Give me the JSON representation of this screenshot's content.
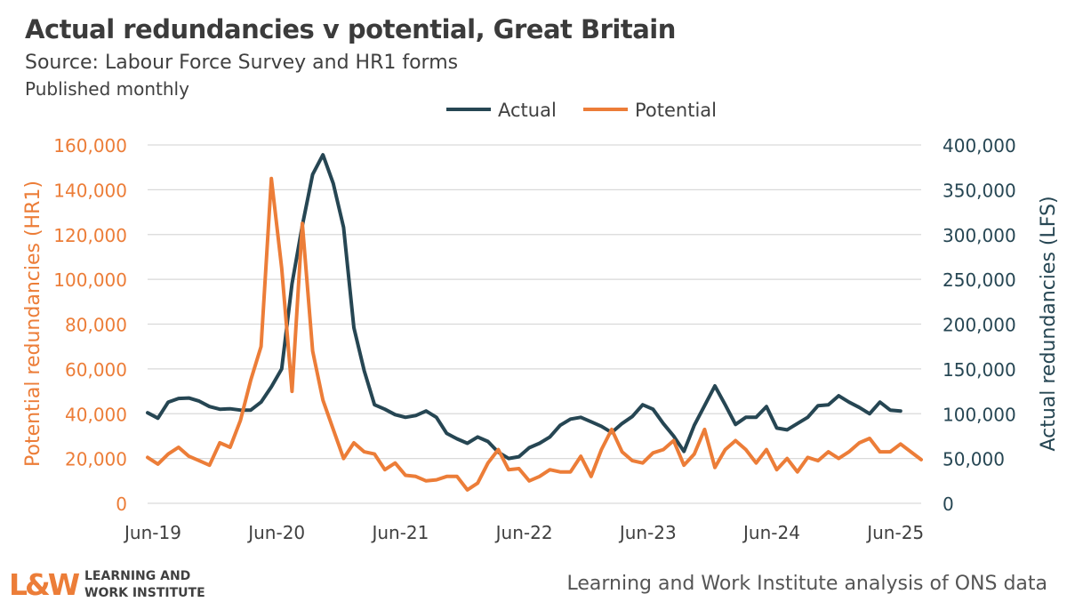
{
  "header": {
    "title": "Actual redundancies v potential, Great Britain",
    "subtitle": "Source: Labour Force Survey and HR1 forms",
    "frequency": "Published monthly"
  },
  "footer": {
    "logo_mark": "L&W",
    "logo_line1": "LEARNING AND",
    "logo_line2": "WORK INSTITUTE",
    "source": "Learning and Work Institute analysis of ONS data"
  },
  "colors": {
    "actual": "#264653",
    "potential": "#ec7d38",
    "grid": "#d9d9d9",
    "axis_text": "#404040"
  },
  "chart_data": {
    "type": "line",
    "x_tick_labels": [
      "Jun-19",
      "Jun-20",
      "Jun-21",
      "Jun-22",
      "Jun-23",
      "Jun-24",
      "Jun-25"
    ],
    "legend": {
      "position": "top",
      "entries": [
        "Actual",
        "Potential"
      ]
    },
    "grid": true,
    "left_axis": {
      "label": "Potential redundancies (HR1)",
      "range": [
        0,
        160000
      ],
      "ticks": [
        "0",
        "20,000",
        "40,000",
        "60,000",
        "80,000",
        "100,000",
        "120,000",
        "140,000",
        "160,000"
      ]
    },
    "right_axis": {
      "label": "Actual redundancies (LFS)",
      "range": [
        0,
        400000
      ],
      "ticks": [
        "0",
        "50,000",
        "100,000",
        "150,000",
        "200,000",
        "250,000",
        "300,000",
        "350,000",
        "400,000"
      ]
    },
    "series": [
      {
        "name": "Actual",
        "axis": "right",
        "values": [
          101000,
          95000,
          113000,
          117000,
          117500,
          114000,
          108000,
          105000,
          105500,
          104000,
          104000,
          113000,
          130000,
          150000,
          245000,
          310000,
          367000,
          389000,
          357000,
          308000,
          196000,
          148000,
          110000,
          105000,
          99000,
          96000,
          98000,
          103000,
          96000,
          78000,
          72000,
          67000,
          74000,
          69000,
          57000,
          50000,
          52000,
          62000,
          67000,
          74000,
          87000,
          94000,
          96000,
          91000,
          86000,
          79000,
          89000,
          97000,
          110000,
          105000,
          89000,
          75000,
          58000,
          87000,
          109000,
          131000,
          110000,
          88000,
          96000,
          96000,
          108000,
          84000,
          82000,
          89000,
          96000,
          109000,
          110000,
          120000,
          113000,
          107000,
          100000,
          113000,
          104000,
          103000
        ]
      },
      {
        "name": "Potential",
        "axis": "left",
        "values": [
          20500,
          17500,
          22000,
          25000,
          21000,
          19000,
          17000,
          27000,
          25000,
          37000,
          55000,
          70000,
          145000,
          105000,
          50000,
          125000,
          68000,
          46000,
          33000,
          20000,
          27000,
          23000,
          22000,
          15000,
          18000,
          12500,
          12000,
          10000,
          10500,
          12000,
          12000,
          6000,
          9000,
          18000,
          24000,
          15000,
          15500,
          10000,
          12000,
          15000,
          14000,
          14000,
          21000,
          12000,
          24000,
          33000,
          23000,
          19000,
          18000,
          22500,
          24000,
          28000,
          17000,
          22000,
          33000,
          16000,
          24000,
          28000,
          24000,
          18000,
          24000,
          15000,
          20000,
          14000,
          20500,
          19000,
          23000,
          20000,
          23000,
          27000,
          29000,
          23000,
          23000,
          26500,
          23000,
          19500
        ]
      }
    ]
  }
}
